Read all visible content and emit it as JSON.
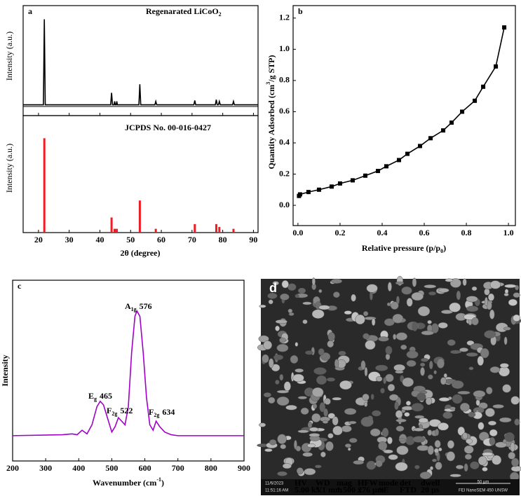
{
  "chart_data": [
    {
      "type": "line",
      "panel_label": "a",
      "title": [
        "Regenarated LiCoO",
        "2"
      ],
      "y_label": "Intensity (a.u.)",
      "color": "#000000",
      "xlim": [
        15,
        91.5
      ],
      "xticks": [
        20,
        30,
        40,
        50,
        60,
        70,
        80,
        90
      ],
      "ylim": [
        -2,
        116
      ],
      "x": [
        15,
        21.6,
        21.9,
        22.2,
        43.5,
        43.8,
        44.1,
        44.6,
        44.8,
        45.0,
        45.3,
        45.5,
        45.7,
        52.7,
        53.0,
        53.3,
        57.9,
        58.2,
        58.5,
        70.6,
        70.9,
        71.2,
        77.6,
        77.9,
        78.2,
        78.6,
        78.9,
        79.2,
        83.2,
        83.5,
        83.8,
        91.5
      ],
      "values": [
        0,
        0,
        100,
        0,
        0,
        14,
        0,
        0,
        4,
        0,
        0,
        4,
        0,
        0,
        24,
        0,
        0,
        4,
        0,
        0,
        5,
        0,
        0,
        6,
        0,
        0,
        4,
        0,
        0,
        4,
        0,
        0
      ]
    },
    {
      "type": "bar",
      "title": "JCPDS No. 00-016-0427",
      "y_label": "Intensity (a.u.)",
      "x_label": "2θ (degree)",
      "color": "#ee1c25",
      "xlim": [
        15,
        91.5
      ],
      "xticks": [
        20,
        30,
        40,
        50,
        60,
        70,
        80,
        90
      ],
      "ylim": [
        0,
        124
      ],
      "x": [
        21.9,
        43.8,
        44.8,
        45.5,
        53.0,
        58.2,
        70.9,
        77.9,
        78.9,
        83.5
      ],
      "values": [
        100,
        16,
        4,
        4,
        34,
        4,
        9,
        9,
        6,
        4
      ]
    },
    {
      "type": "line",
      "markers": true,
      "panel_label": "b",
      "x_label": [
        "Relative pressure (p/p",
        "0",
        ")"
      ],
      "y_label": [
        "Quantity Adsorbed (cm",
        "3",
        "/g STP)"
      ],
      "color": "#000000",
      "xlim": [
        -0.023,
        1.033
      ],
      "xticks": [
        {
          "value": 0,
          "label": "0.0"
        },
        0.2,
        0.4,
        0.6,
        0.8,
        {
          "value": 1,
          "label": "1.0"
        }
      ],
      "ylim": [
        -0.13,
        1.28
      ],
      "yticks": [
        {
          "value": 0,
          "label": "0.0"
        },
        0.2,
        0.4,
        0.6,
        0.8,
        {
          "value": 1,
          "label": "1.0"
        },
        1.2
      ],
      "x": [
        0.005,
        0.01,
        0.05,
        0.1,
        0.16,
        0.2,
        0.26,
        0.32,
        0.38,
        0.42,
        0.48,
        0.52,
        0.58,
        0.63,
        0.69,
        0.73,
        0.78,
        0.84,
        0.88,
        0.94,
        0.98
      ],
      "values": [
        0.06,
        0.07,
        0.085,
        0.1,
        0.12,
        0.14,
        0.16,
        0.19,
        0.22,
        0.25,
        0.29,
        0.33,
        0.38,
        0.43,
        0.48,
        0.53,
        0.6,
        0.67,
        0.76,
        0.89,
        1.14
      ]
    },
    {
      "type": "line",
      "panel_label": "c",
      "x_label": [
        "Wavenumber (cm",
        "-1",
        ")"
      ],
      "y_label": "Intensity",
      "color": "#a000c8",
      "xlim": [
        200,
        900
      ],
      "xticks": [
        200,
        300,
        400,
        500,
        600,
        700,
        800,
        900
      ],
      "ylim": [
        0,
        100
      ],
      "x": [
        200,
        350,
        380,
        395,
        410,
        425,
        440,
        455,
        465,
        475,
        490,
        500,
        510,
        520,
        530,
        540,
        550,
        560,
        570,
        576,
        585,
        595,
        605,
        615,
        625,
        634,
        645,
        660,
        680,
        700,
        800,
        900
      ],
      "values": [
        14,
        14.5,
        15,
        14.5,
        17,
        15,
        20,
        30,
        33,
        31,
        22,
        16,
        19,
        24,
        22,
        20,
        30,
        60,
        80,
        83,
        80,
        60,
        35,
        20,
        17,
        22,
        19,
        16,
        14.5,
        14,
        14,
        14
      ],
      "annotations": [
        {
          "symbol": "A",
          "subscript": "1g",
          "text": "576"
        },
        {
          "symbol": "E",
          "subscript": "g",
          "text": "465"
        },
        {
          "symbol": "F",
          "subscript": "2g",
          "text": "522"
        },
        {
          "symbol": "F",
          "subscript": "2g",
          "text": "634"
        }
      ]
    }
  ],
  "sem_image": {
    "panel_label": "d",
    "date": "11/6/2023",
    "time": "11:51:16 AM",
    "fields": [
      {
        "name": "HV",
        "value": "5.00 kV"
      },
      {
        "name": "WD",
        "value": "5.1 mm"
      },
      {
        "name": "mag",
        "value": "1 500 x"
      },
      {
        "name": "HFW",
        "value": "276 µm"
      },
      {
        "name": "mode",
        "value": "SE"
      },
      {
        "name": "det",
        "value": "FTD"
      },
      {
        "name": "dwell",
        "value": "20 µs"
      }
    ],
    "scale_bar": "50 µm",
    "instrument": "FEI NanoSEM 450 UNSW"
  }
}
